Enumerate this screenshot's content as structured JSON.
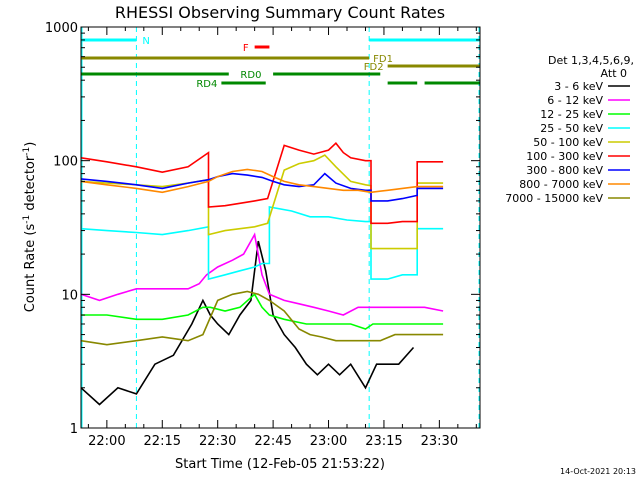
{
  "chart_data": {
    "type": "line",
    "title": "RHESSI Observing Summary Count Rates",
    "xlabel": "Start Time (12-Feb-05 21:53:22)",
    "ylabel": "Count Rate (s⁻¹ detector⁻¹)",
    "ylabel_main": "Count Rate (s",
    "ylabel_sup1": "-1",
    "ylabel_mid": " detector",
    "ylabel_sup2": "-1",
    "ylabel_end": ")",
    "y_scale": "log",
    "ylim": [
      1,
      1000
    ],
    "xlim_minutes": [
      -7,
      101
    ],
    "x_ticks": [
      {
        "t": 0,
        "label": "22:00"
      },
      {
        "t": 15,
        "label": "22:15"
      },
      {
        "t": 30,
        "label": "22:30"
      },
      {
        "t": 45,
        "label": "22:45"
      },
      {
        "t": 60,
        "label": "23:00"
      },
      {
        "t": 75,
        "label": "23:15"
      },
      {
        "t": 90,
        "label": "23:30"
      }
    ],
    "y_ticks": [
      {
        "v": 1,
        "label": "1"
      },
      {
        "v": 10,
        "label": "10"
      },
      {
        "v": 100,
        "label": "100"
      },
      {
        "v": 1000,
        "label": "1000"
      }
    ],
    "date_stamp": "14-Oct-2021 20:13",
    "legend": {
      "header1": "Det 1,3,4,5,6,9,",
      "header2": "Att 0",
      "entries": [
        {
          "label": "3 - 6 keV",
          "color": "#000000"
        },
        {
          "label": "6 - 12 keV",
          "color": "#ff00ff"
        },
        {
          "label": "12 - 25 keV",
          "color": "#00ff00"
        },
        {
          "label": "25 - 50 keV",
          "color": "#00ffff"
        },
        {
          "label": "50 - 100 keV",
          "color": "#cccc00"
        },
        {
          "label": "100 - 300 keV",
          "color": "#ff0000"
        },
        {
          "label": "300 - 800 keV",
          "color": "#0000ff"
        },
        {
          "label": "800 - 7000 keV",
          "color": "#ff8800"
        },
        {
          "label": "7000 - 15000 keV",
          "color": "#888800"
        }
      ]
    },
    "flags": [
      {
        "label": "N",
        "color": "#00ffff",
        "segments": [
          [
            -7,
            8
          ],
          [
            71,
            101
          ]
        ]
      },
      {
        "label": "F",
        "color": "#ff0000",
        "segments": [
          [
            40,
            44
          ]
        ]
      },
      {
        "label": "FD1",
        "color": "#888800",
        "segments": [
          [
            -7,
            71
          ]
        ]
      },
      {
        "label": "FD2",
        "color": "#888800",
        "segments": [
          [
            76,
            101
          ]
        ]
      },
      {
        "label": "RD0",
        "color": "#008800",
        "segments": [
          [
            -7,
            33
          ],
          [
            45,
            74
          ]
        ]
      },
      {
        "label": "RD4",
        "color": "#008800",
        "segments": [
          [
            31,
            43
          ],
          [
            76,
            84
          ],
          [
            86,
            101
          ]
        ]
      }
    ],
    "night_intervals": [
      [
        -7,
        8
      ],
      [
        71,
        101
      ]
    ],
    "series": [
      {
        "name": "3 - 6 keV",
        "color": "#000000",
        "x": [
          -7,
          -2,
          3,
          8,
          13,
          18,
          23,
          26,
          28,
          30,
          33,
          36,
          39,
          41,
          43,
          45,
          48,
          51,
          54,
          57,
          60,
          63,
          66,
          70,
          73,
          76,
          79,
          83
        ],
        "y": [
          2,
          1.5,
          2,
          1.8,
          3,
          3.5,
          6,
          9,
          7,
          6,
          5,
          7,
          9,
          25,
          15,
          7,
          5,
          4,
          3,
          2.5,
          3,
          2.5,
          3,
          2,
          3,
          3,
          3,
          4
        ]
      },
      {
        "name": "6 - 12 keV",
        "color": "#ff00ff",
        "x": [
          -7,
          -2,
          3,
          8,
          13,
          18,
          22,
          25,
          27,
          30,
          34,
          37,
          40,
          42,
          44,
          48,
          52,
          56,
          60,
          64,
          68,
          70,
          72,
          76,
          80,
          86,
          91
        ],
        "y": [
          10,
          9,
          10,
          11,
          11,
          11,
          11,
          12,
          14,
          16,
          18,
          20,
          28,
          14,
          10,
          9,
          8.5,
          8,
          7.5,
          7,
          8,
          8,
          8,
          8,
          8,
          8,
          7.5
        ]
      },
      {
        "name": "12 - 25 keV",
        "color": "#00ff00",
        "x": [
          -7,
          0,
          8,
          15,
          22,
          26,
          28,
          32,
          36,
          40,
          42,
          44,
          48,
          54,
          58,
          62,
          66,
          70,
          72,
          76,
          82,
          86,
          91
        ],
        "y": [
          7,
          7,
          6.5,
          6.5,
          7,
          8,
          8,
          7.5,
          8,
          10,
          8,
          7,
          6.5,
          6,
          6,
          6,
          6,
          5.5,
          6,
          6,
          6,
          6,
          6
        ]
      },
      {
        "name": "25 - 50 keV",
        "color": "#00ffff",
        "x": [
          -7,
          0,
          8,
          15,
          22,
          27.5,
          27.5,
          32,
          36,
          40,
          42,
          44,
          44,
          50,
          55,
          60,
          65,
          70,
          71.5,
          71.5,
          76,
          80,
          84,
          84,
          91
        ],
        "y": [
          31,
          30,
          29,
          28,
          30,
          32,
          13,
          14,
          15,
          16,
          17,
          17,
          45,
          42,
          38,
          38,
          36,
          35,
          35,
          13,
          13,
          14,
          14,
          31,
          31
        ]
      },
      {
        "name": "50 - 100 keV",
        "color": "#cccc00",
        "x": [
          -7,
          0,
          8,
          15,
          22,
          27.5,
          27.5,
          32,
          36,
          40,
          43.5,
          43.5,
          48,
          52,
          56,
          59,
          62,
          66,
          70,
          71.5,
          71.5,
          76,
          80,
          84,
          84,
          91
        ],
        "y": [
          70,
          68,
          66,
          64,
          68,
          72,
          28,
          30,
          31,
          32,
          34,
          34,
          85,
          95,
          100,
          110,
          90,
          70,
          66,
          65,
          22,
          22,
          22,
          22,
          68,
          68
        ]
      },
      {
        "name": "100 - 300 keV",
        "color": "#ff0000",
        "x": [
          -7,
          0,
          8,
          15,
          22,
          27.5,
          27.5,
          32,
          36,
          40,
          43.5,
          43.5,
          48,
          52,
          56,
          60,
          62,
          64,
          66,
          70,
          71.5,
          71.5,
          76,
          80,
          84,
          84,
          91
        ],
        "y": [
          105,
          98,
          90,
          82,
          90,
          115,
          45,
          46,
          48,
          50,
          52,
          52,
          130,
          120,
          112,
          120,
          135,
          115,
          105,
          100,
          100,
          34,
          34,
          35,
          35,
          98,
          98
        ]
      },
      {
        "name": "300 - 800 keV",
        "color": "#0000ff",
        "x": [
          -7,
          0,
          8,
          15,
          22,
          27.5,
          30,
          34,
          38,
          42,
          45,
          48,
          52,
          56,
          59,
          62,
          66,
          70,
          71.5,
          71.5,
          76,
          80,
          84,
          84,
          91
        ],
        "y": [
          73,
          70,
          66,
          62,
          68,
          72,
          76,
          80,
          78,
          75,
          70,
          66,
          64,
          66,
          80,
          68,
          62,
          60,
          60,
          50,
          50,
          52,
          55,
          62,
          62
        ]
      },
      {
        "name": "800 - 7000 keV",
        "color": "#ff8800",
        "x": [
          -7,
          0,
          8,
          15,
          22,
          27.5,
          30,
          34,
          38,
          42,
          45,
          48,
          52,
          56,
          60,
          64,
          68,
          71.5,
          76,
          80,
          84,
          91
        ],
        "y": [
          70,
          66,
          62,
          58,
          64,
          70,
          76,
          83,
          86,
          83,
          76,
          70,
          66,
          64,
          62,
          60,
          60,
          58,
          60,
          62,
          64,
          64
        ]
      },
      {
        "name": "7000 - 15000 keV",
        "color": "#888800",
        "x": [
          -7,
          0,
          8,
          15,
          22,
          26,
          30,
          34,
          38,
          41,
          44,
          48,
          52,
          55,
          58,
          62,
          66,
          70,
          74,
          78,
          82,
          86,
          91
        ],
        "y": [
          4.5,
          4.2,
          4.5,
          4.8,
          4.5,
          5,
          9,
          10,
          10.5,
          10,
          9,
          7.5,
          5.5,
          5,
          4.8,
          4.5,
          4.5,
          4.5,
          4.5,
          5,
          5,
          5,
          5
        ]
      }
    ]
  }
}
